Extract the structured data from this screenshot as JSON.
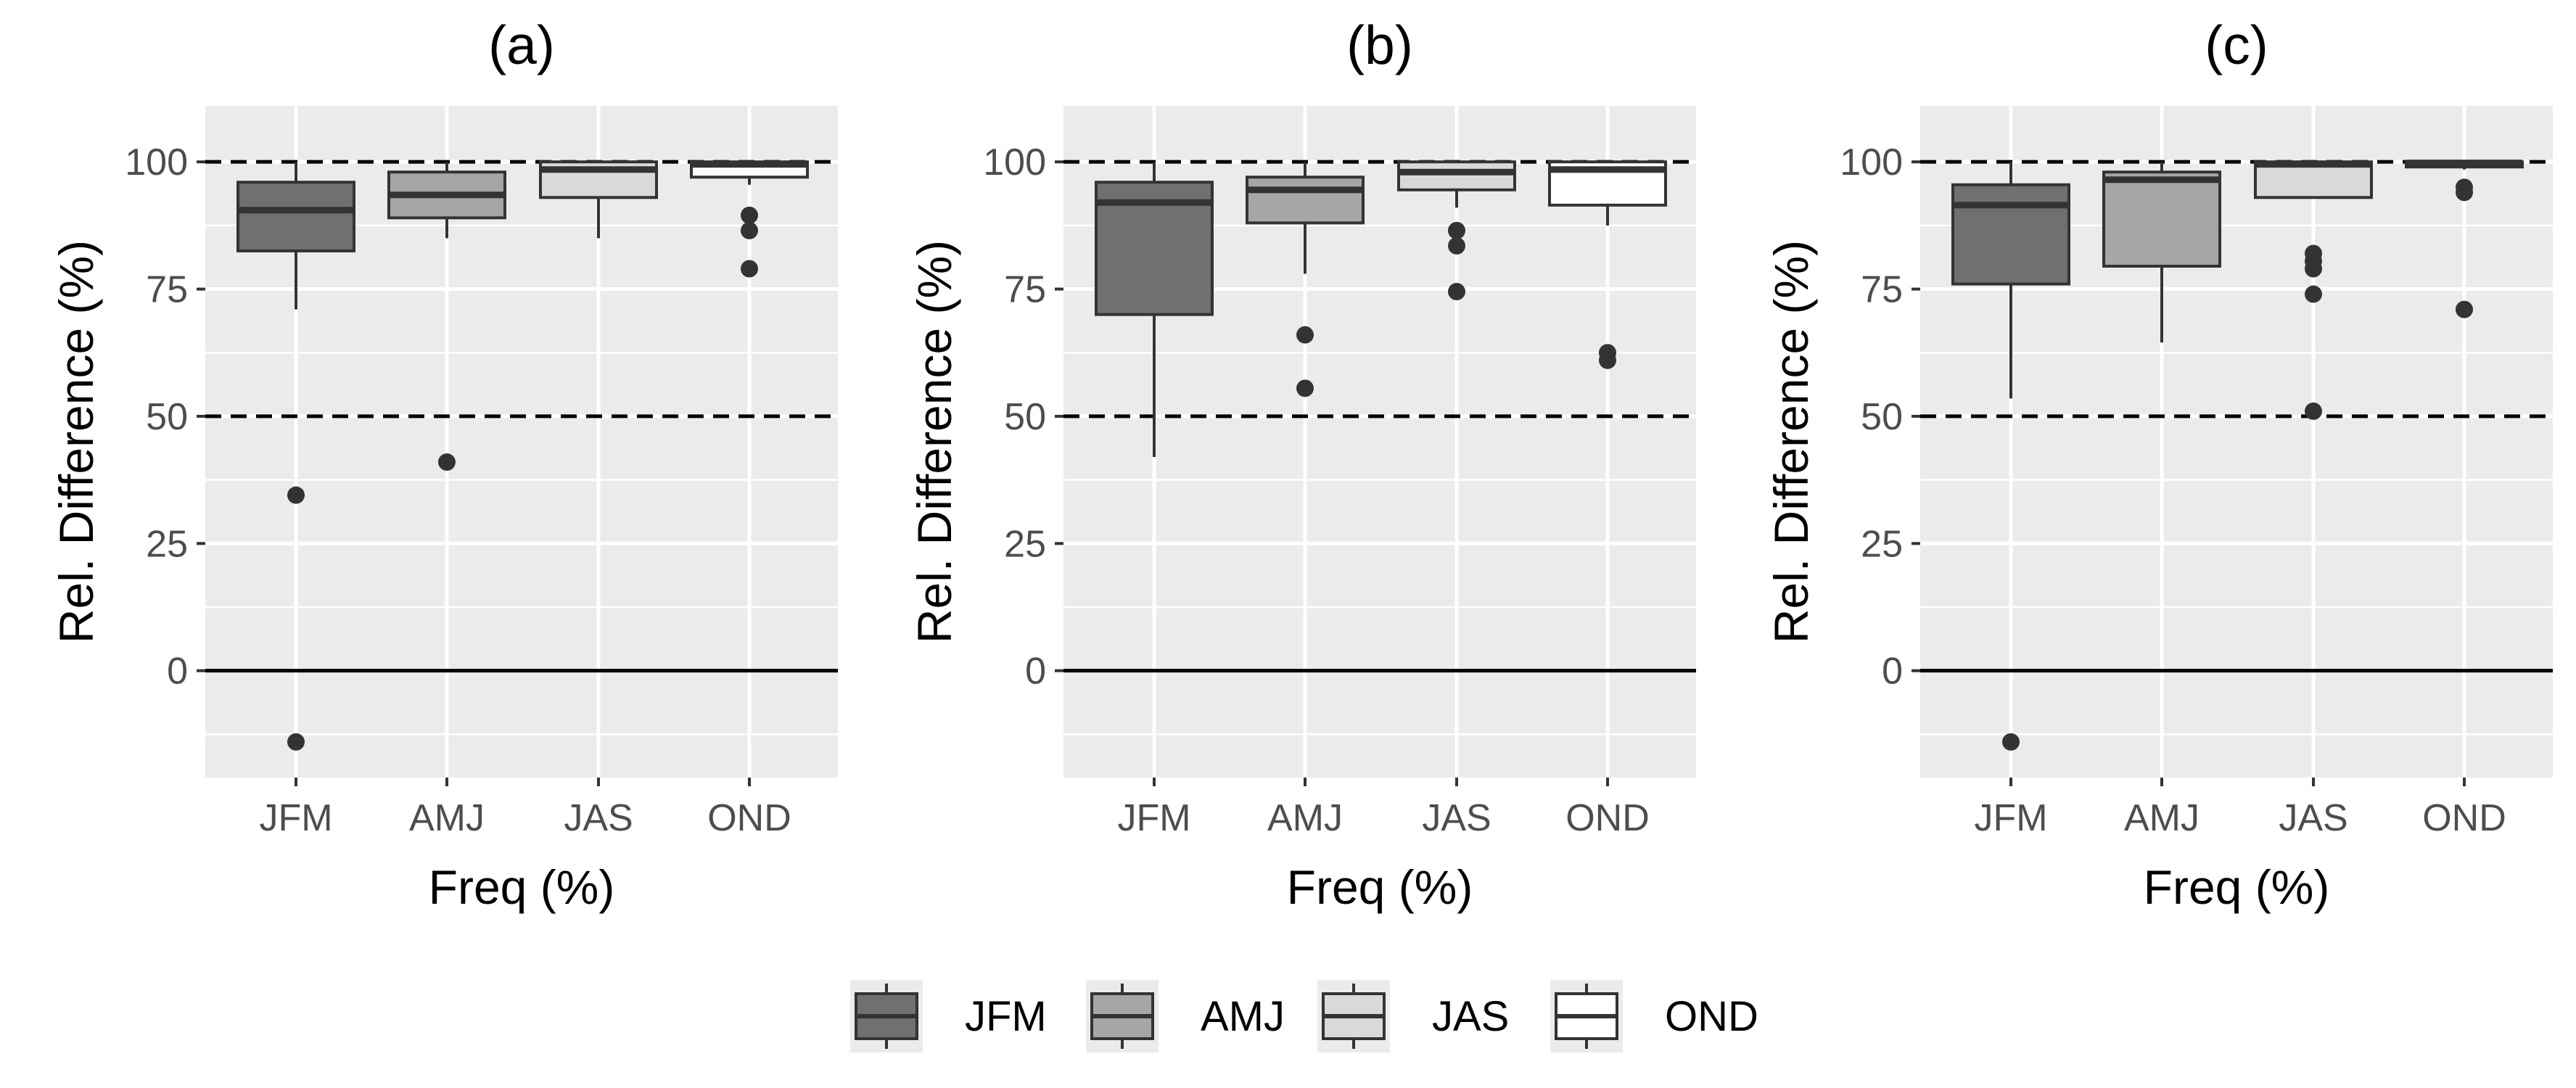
{
  "figure": {
    "legend_position": "bottom",
    "colors": {
      "JFM": "#707070",
      "AMJ": "#a6a6a6",
      "JAS": "#d9d9d9",
      "OND": "#ffffff",
      "panel_bg": "#ebebeb",
      "grid": "#ffffff",
      "text": "#000000",
      "tick_text": "#4d4d4d",
      "box_line": "#333333"
    }
  },
  "legend": {
    "entries": [
      "JFM",
      "AMJ",
      "JAS",
      "OND"
    ]
  },
  "chart_data": [
    {
      "type": "box",
      "title": "(a)",
      "xlabel": "Freq (%)",
      "ylabel": "Rel. Difference (%)",
      "ylim": [
        -21,
        111
      ],
      "yticks": [
        0,
        25,
        50,
        75,
        100
      ],
      "categories": [
        "JFM",
        "AMJ",
        "JAS",
        "OND"
      ],
      "reference_lines": {
        "dashed": [
          100,
          50
        ],
        "solid": [
          0
        ]
      },
      "boxes": [
        {
          "category": "JFM",
          "whisker_low": 71,
          "q1": 82.5,
          "median": 90.5,
          "q3": 96,
          "whisker_high": 100,
          "outliers": [
            34.5,
            -14
          ]
        },
        {
          "category": "AMJ",
          "whisker_low": 85,
          "q1": 89,
          "median": 93.5,
          "q3": 98,
          "whisker_high": 100,
          "outliers": [
            41
          ]
        },
        {
          "category": "JAS",
          "whisker_low": 85,
          "q1": 93,
          "median": 98.5,
          "q3": 100,
          "whisker_high": 100,
          "outliers": []
        },
        {
          "category": "OND",
          "whisker_low": 95.5,
          "q1": 97,
          "median": 99.5,
          "q3": 100,
          "whisker_high": 100,
          "outliers": [
            89.5,
            86.5,
            79
          ]
        }
      ]
    },
    {
      "type": "box",
      "title": "(b)",
      "xlabel": "Freq (%)",
      "ylabel": "Rel. Difference (%)",
      "ylim": [
        -21,
        111
      ],
      "yticks": [
        0,
        25,
        50,
        75,
        100
      ],
      "categories": [
        "JFM",
        "AMJ",
        "JAS",
        "OND"
      ],
      "reference_lines": {
        "dashed": [
          100,
          50
        ],
        "solid": [
          0
        ]
      },
      "boxes": [
        {
          "category": "JFM",
          "whisker_low": 42,
          "q1": 70,
          "median": 92,
          "q3": 96,
          "whisker_high": 100,
          "outliers": []
        },
        {
          "category": "AMJ",
          "whisker_low": 78,
          "q1": 88,
          "median": 94.5,
          "q3": 97,
          "whisker_high": 100,
          "outliers": [
            66,
            55.5
          ]
        },
        {
          "category": "JAS",
          "whisker_low": 91,
          "q1": 94.5,
          "median": 98,
          "q3": 100,
          "whisker_high": 100,
          "outliers": [
            86.5,
            83.5,
            74.5
          ]
        },
        {
          "category": "OND",
          "whisker_low": 87.5,
          "q1": 91.5,
          "median": 98.5,
          "q3": 100,
          "whisker_high": 100,
          "outliers": [
            62.5,
            61
          ]
        }
      ]
    },
    {
      "type": "box",
      "title": "(c)",
      "xlabel": "Freq (%)",
      "ylabel": "Rel. Difference (%)",
      "ylim": [
        -21,
        111
      ],
      "yticks": [
        0,
        25,
        50,
        75,
        100
      ],
      "categories": [
        "JFM",
        "AMJ",
        "JAS",
        "OND"
      ],
      "reference_lines": {
        "dashed": [
          100,
          50
        ],
        "solid": [
          0
        ]
      },
      "boxes": [
        {
          "category": "JFM",
          "whisker_low": 53.5,
          "q1": 76,
          "median": 91.5,
          "q3": 95.5,
          "whisker_high": 100,
          "outliers": [
            -14
          ]
        },
        {
          "category": "AMJ",
          "whisker_low": 64.5,
          "q1": 79.5,
          "median": 96.5,
          "q3": 98,
          "whisker_high": 100,
          "outliers": []
        },
        {
          "category": "JAS",
          "whisker_low": 93,
          "q1": 93,
          "median": 99.5,
          "q3": 100,
          "whisker_high": 100,
          "outliers": [
            82,
            80.5,
            79,
            74,
            51
          ]
        },
        {
          "category": "OND",
          "whisker_low": 98.5,
          "q1": 99,
          "median": 99.8,
          "q3": 100,
          "whisker_high": 100,
          "outliers": [
            95,
            94,
            71
          ]
        }
      ]
    }
  ]
}
